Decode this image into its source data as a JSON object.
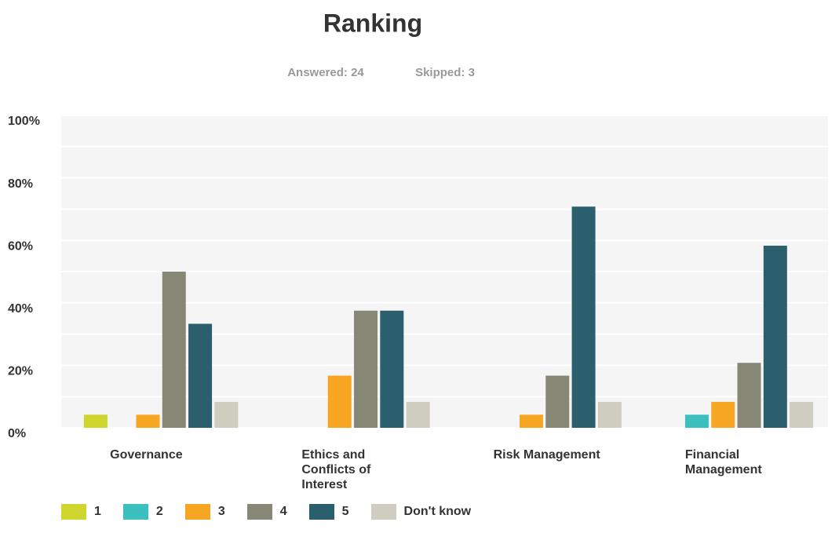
{
  "chart_data": {
    "type": "bar",
    "title": "Ranking",
    "subtitle": [
      "Answered: 24",
      "Skipped: 3"
    ],
    "categories": [
      "Governance",
      "Ethics and Conflicts of Interest",
      "Risk Management",
      "Financial Management"
    ],
    "series": [
      {
        "name": "1",
        "color": "#cfd52f",
        "values": [
          4.2,
          0,
          0,
          0
        ]
      },
      {
        "name": "2",
        "color": "#3bbfbf",
        "values": [
          0,
          0,
          0,
          4.2
        ]
      },
      {
        "name": "3",
        "color": "#f6a623",
        "values": [
          4.2,
          16.7,
          4.2,
          8.3
        ]
      },
      {
        "name": "4",
        "color": "#878776",
        "values": [
          50,
          37.5,
          16.7,
          20.8
        ]
      },
      {
        "name": "5",
        "color": "#2c5f6e",
        "values": [
          33.3,
          37.5,
          70.8,
          58.3
        ]
      },
      {
        "name": "Don't know",
        "color": "#cfcdbf",
        "values": [
          8.3,
          8.3,
          8.3,
          8.3
        ]
      }
    ],
    "ylim": [
      0,
      100
    ],
    "yticks": [
      {
        "value": 0,
        "label": "0%"
      },
      {
        "value": 20,
        "label": "20%"
      },
      {
        "value": 40,
        "label": "40%"
      },
      {
        "value": 60,
        "label": "60%"
      },
      {
        "value": 80,
        "label": "80%"
      },
      {
        "value": 100,
        "label": "100%"
      }
    ],
    "minor_yticks": [
      10,
      30,
      50,
      70,
      90
    ],
    "grid": true,
    "legend": "bottom"
  }
}
